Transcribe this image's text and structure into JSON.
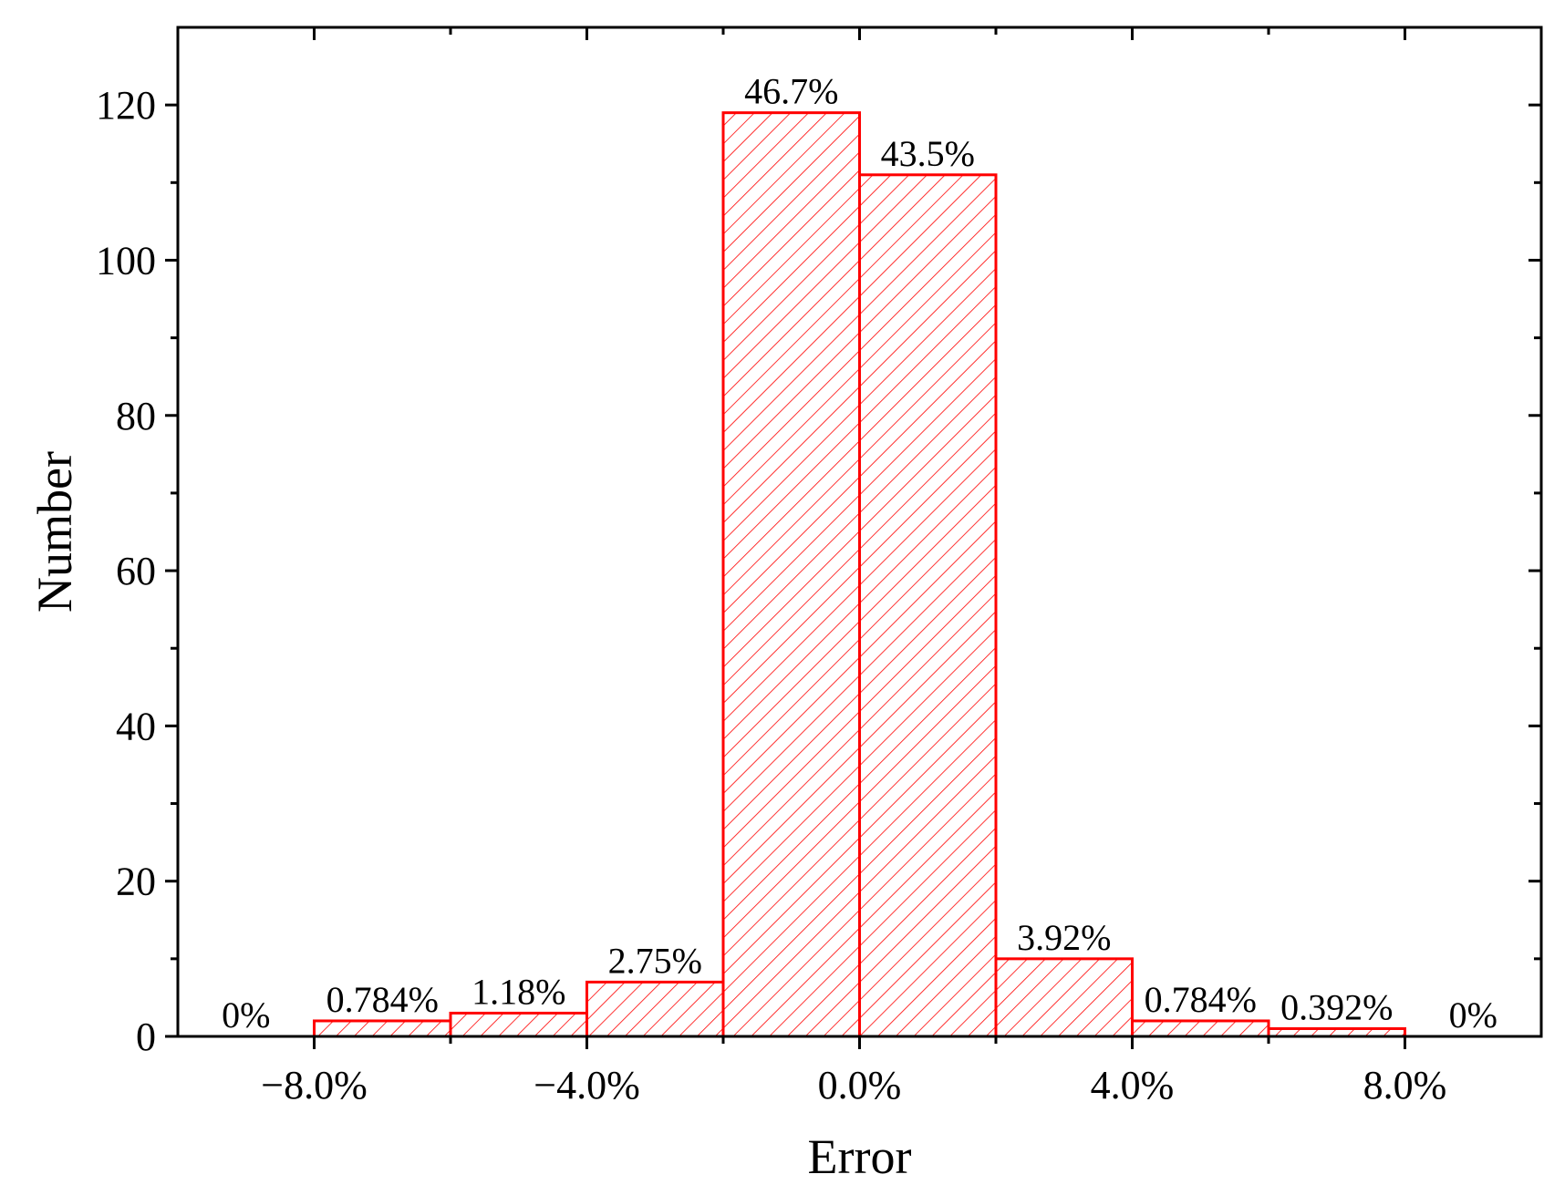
{
  "chart_data": {
    "type": "bar",
    "title": "",
    "xlabel": "Error",
    "ylabel": "Number",
    "xlim": [
      -10.0,
      10.0
    ],
    "ylim": [
      0,
      130
    ],
    "x_ticks": [
      -8,
      -4,
      0,
      4,
      8
    ],
    "x_tick_labels": [
      "−8.0%",
      "−4.0%",
      "0.0%",
      "4.0%",
      "8.0%"
    ],
    "x_minor_ticks": [
      -6,
      -2,
      2,
      6
    ],
    "y_ticks": [
      0,
      20,
      40,
      60,
      80,
      100,
      120
    ],
    "y_tick_labels": [
      "0",
      "20",
      "40",
      "60",
      "80",
      "100",
      "120"
    ],
    "bins": [
      {
        "x0": -10,
        "x1": -8,
        "value": 0,
        "label": "0%"
      },
      {
        "x0": -8,
        "x1": -6,
        "value": 2,
        "label": "0.784%"
      },
      {
        "x0": -6,
        "x1": -4,
        "value": 3,
        "label": "1.18%"
      },
      {
        "x0": -4,
        "x1": -2,
        "value": 7,
        "label": "2.75%"
      },
      {
        "x0": -2,
        "x1": 0,
        "value": 119,
        "label": "46.7%"
      },
      {
        "x0": 0,
        "x1": 2,
        "value": 111,
        "label": "43.5%"
      },
      {
        "x0": 2,
        "x1": 4,
        "value": 10,
        "label": "3.92%"
      },
      {
        "x0": 4,
        "x1": 6,
        "value": 2,
        "label": "0.784%"
      },
      {
        "x0": 6,
        "x1": 8,
        "value": 1,
        "label": "0.392%"
      },
      {
        "x0": 8,
        "x1": 10,
        "value": 0,
        "label": "0%"
      }
    ],
    "bar_color": "#ff0000",
    "fill_pattern": "diagonal-hatch",
    "grid": false,
    "legend": "none"
  }
}
